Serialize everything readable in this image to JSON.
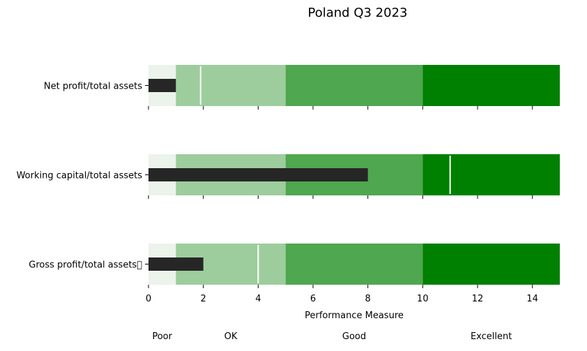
{
  "chart_data": {
    "type": "bullet",
    "title": "Poland Q3 2023",
    "xlabel": "Performance Measure",
    "xlim": [
      0,
      15
    ],
    "xticks": [
      0,
      2,
      4,
      6,
      8,
      10,
      12,
      14
    ],
    "band_colors": [
      "#ebf3eb",
      "#9dcd9d",
      "#4fa74f",
      "#008000"
    ],
    "bands": [
      {
        "label": "Poor",
        "from": 0,
        "to": 1
      },
      {
        "label": "OK",
        "from": 1,
        "to": 5
      },
      {
        "label": "Good",
        "from": 5,
        "to": 10
      },
      {
        "label": "Excellent",
        "from": 10,
        "to": 15
      }
    ],
    "bar_color": "#262626",
    "target_color": "#ffffff",
    "rows": [
      {
        "label": "Net profit/total assets",
        "value": 1,
        "target": 1.9
      },
      {
        "label": "Working capital/total assets",
        "value": 8,
        "target": 11
      },
      {
        "label": "Gross profit/total assets\u0000",
        "value": 2,
        "target": 4
      }
    ]
  }
}
